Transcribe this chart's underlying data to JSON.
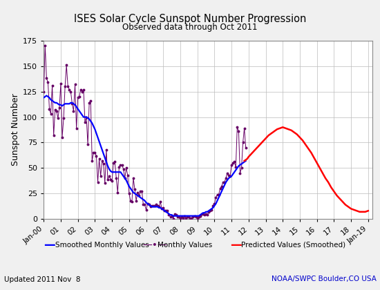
{
  "title": "ISES Solar Cycle Sunspot Number Progression",
  "subtitle": "Observed data through Oct 2011",
  "ylabel": "Sunspot Number",
  "footer_left": "Updated 2011 Nov  8",
  "footer_right": "NOAA/SWPC Boulder,CO USA",
  "ylim": [
    0,
    175
  ],
  "yticks": [
    0,
    25,
    50,
    75,
    100,
    125,
    150,
    175
  ],
  "x_start_year": 2000.0,
  "x_end_year": 2019.25,
  "x_tick_years": [
    2000,
    2001,
    2002,
    2003,
    2004,
    2005,
    2006,
    2007,
    2008,
    2009,
    2010,
    2011,
    2012,
    2013,
    2014,
    2015,
    2016,
    2017,
    2018,
    2019
  ],
  "x_tick_labels": [
    "Jan-00",
    "01",
    "02",
    "03",
    "04",
    "05",
    "06",
    "07",
    "08",
    "09",
    "10",
    "11",
    "12",
    "13",
    "14",
    "15",
    "16",
    "17",
    "18",
    "Jan-19"
  ],
  "bg_color": "#f0f0f0",
  "plot_bg_color": "#ffffff",
  "smoothed_color": "#0000ff",
  "monthly_color": "#660066",
  "predicted_color": "#ff0000",
  "smoothed_lw": 1.6,
  "predicted_lw": 1.8,
  "monthly_lw": 0.7,
  "monthly_marker": "o",
  "monthly_ms": 1.8,
  "smoothed_monthly": [
    [
      2000.0,
      119
    ],
    [
      2000.083,
      120
    ],
    [
      2000.167,
      121
    ],
    [
      2000.25,
      120
    ],
    [
      2000.333,
      119
    ],
    [
      2000.417,
      117
    ],
    [
      2000.5,
      116
    ],
    [
      2000.583,
      115
    ],
    [
      2000.667,
      114
    ],
    [
      2000.75,
      114
    ],
    [
      2000.833,
      113
    ],
    [
      2000.917,
      112
    ],
    [
      2001.0,
      112
    ],
    [
      2001.083,
      111
    ],
    [
      2001.167,
      112
    ],
    [
      2001.25,
      113
    ],
    [
      2001.333,
      113
    ],
    [
      2001.417,
      113
    ],
    [
      2001.5,
      113
    ],
    [
      2001.583,
      114
    ],
    [
      2001.667,
      114
    ],
    [
      2001.75,
      113
    ],
    [
      2001.833,
      112
    ],
    [
      2001.917,
      110
    ],
    [
      2002.0,
      108
    ],
    [
      2002.083,
      106
    ],
    [
      2002.167,
      104
    ],
    [
      2002.25,
      102
    ],
    [
      2002.333,
      100
    ],
    [
      2002.417,
      100
    ],
    [
      2002.5,
      100
    ],
    [
      2002.583,
      99
    ],
    [
      2002.667,
      98
    ],
    [
      2002.75,
      96
    ],
    [
      2002.833,
      94
    ],
    [
      2002.917,
      91
    ],
    [
      2003.0,
      88
    ],
    [
      2003.083,
      84
    ],
    [
      2003.167,
      80
    ],
    [
      2003.25,
      76
    ],
    [
      2003.333,
      72
    ],
    [
      2003.417,
      68
    ],
    [
      2003.5,
      64
    ],
    [
      2003.583,
      60
    ],
    [
      2003.667,
      56
    ],
    [
      2003.75,
      52
    ],
    [
      2003.833,
      49
    ],
    [
      2003.917,
      47
    ],
    [
      2004.0,
      46
    ],
    [
      2004.083,
      46
    ],
    [
      2004.167,
      46
    ],
    [
      2004.25,
      46
    ],
    [
      2004.333,
      46
    ],
    [
      2004.417,
      46
    ],
    [
      2004.5,
      46
    ],
    [
      2004.583,
      44
    ],
    [
      2004.667,
      42
    ],
    [
      2004.75,
      40
    ],
    [
      2004.833,
      38
    ],
    [
      2004.917,
      35
    ],
    [
      2005.0,
      32
    ],
    [
      2005.083,
      30
    ],
    [
      2005.167,
      28
    ],
    [
      2005.25,
      26
    ],
    [
      2005.333,
      25
    ],
    [
      2005.417,
      24
    ],
    [
      2005.5,
      23
    ],
    [
      2005.583,
      22
    ],
    [
      2005.667,
      21
    ],
    [
      2005.75,
      20
    ],
    [
      2005.833,
      19
    ],
    [
      2005.917,
      18
    ],
    [
      2006.0,
      16
    ],
    [
      2006.083,
      15
    ],
    [
      2006.167,
      14
    ],
    [
      2006.25,
      13
    ],
    [
      2006.333,
      12
    ],
    [
      2006.417,
      12
    ],
    [
      2006.5,
      12
    ],
    [
      2006.583,
      12
    ],
    [
      2006.667,
      12
    ],
    [
      2006.75,
      11
    ],
    [
      2006.833,
      11
    ],
    [
      2006.917,
      10
    ],
    [
      2007.0,
      9
    ],
    [
      2007.083,
      8
    ],
    [
      2007.167,
      7
    ],
    [
      2007.25,
      6
    ],
    [
      2007.333,
      5
    ],
    [
      2007.417,
      4
    ],
    [
      2007.5,
      4
    ],
    [
      2007.583,
      3
    ],
    [
      2007.667,
      3
    ],
    [
      2007.75,
      3
    ],
    [
      2007.833,
      3
    ],
    [
      2007.917,
      3
    ],
    [
      2008.0,
      3
    ],
    [
      2008.083,
      3
    ],
    [
      2008.167,
      3
    ],
    [
      2008.25,
      3
    ],
    [
      2008.333,
      3
    ],
    [
      2008.417,
      3
    ],
    [
      2008.5,
      3
    ],
    [
      2008.583,
      3
    ],
    [
      2008.667,
      3
    ],
    [
      2008.75,
      3
    ],
    [
      2008.833,
      3
    ],
    [
      2008.917,
      3
    ],
    [
      2009.0,
      3
    ],
    [
      2009.083,
      3
    ],
    [
      2009.167,
      4
    ],
    [
      2009.25,
      5
    ],
    [
      2009.333,
      6
    ],
    [
      2009.417,
      6
    ],
    [
      2009.5,
      7
    ],
    [
      2009.583,
      7
    ],
    [
      2009.667,
      8
    ],
    [
      2009.75,
      9
    ],
    [
      2009.833,
      10
    ],
    [
      2009.917,
      11
    ],
    [
      2010.0,
      13
    ],
    [
      2010.083,
      15
    ],
    [
      2010.167,
      18
    ],
    [
      2010.25,
      21
    ],
    [
      2010.333,
      24
    ],
    [
      2010.417,
      27
    ],
    [
      2010.5,
      30
    ],
    [
      2010.583,
      33
    ],
    [
      2010.667,
      36
    ],
    [
      2010.75,
      38
    ],
    [
      2010.833,
      40
    ],
    [
      2010.917,
      41
    ],
    [
      2011.0,
      42
    ],
    [
      2011.083,
      44
    ],
    [
      2011.167,
      46
    ],
    [
      2011.25,
      48
    ],
    [
      2011.333,
      50
    ],
    [
      2011.417,
      52
    ],
    [
      2011.5,
      53
    ],
    [
      2011.583,
      54
    ],
    [
      2011.667,
      55
    ],
    [
      2011.75,
      56
    ],
    [
      2011.833,
      57
    ]
  ],
  "monthly_values": [
    [
      2000.0,
      125
    ],
    [
      2000.083,
      170
    ],
    [
      2000.167,
      138
    ],
    [
      2000.25,
      134
    ],
    [
      2000.333,
      108
    ],
    [
      2000.417,
      103
    ],
    [
      2000.5,
      131
    ],
    [
      2000.583,
      82
    ],
    [
      2000.667,
      107
    ],
    [
      2000.75,
      106
    ],
    [
      2000.833,
      99
    ],
    [
      2000.917,
      109
    ],
    [
      2001.0,
      133
    ],
    [
      2001.083,
      80
    ],
    [
      2001.167,
      99
    ],
    [
      2001.25,
      130
    ],
    [
      2001.333,
      151
    ],
    [
      2001.417,
      130
    ],
    [
      2001.5,
      127
    ],
    [
      2001.583,
      125
    ],
    [
      2001.667,
      113
    ],
    [
      2001.75,
      106
    ],
    [
      2001.833,
      132
    ],
    [
      2001.917,
      89
    ],
    [
      2002.0,
      119
    ],
    [
      2002.083,
      120
    ],
    [
      2002.167,
      127
    ],
    [
      2002.25,
      125
    ],
    [
      2002.333,
      127
    ],
    [
      2002.417,
      95
    ],
    [
      2002.5,
      100
    ],
    [
      2002.583,
      73
    ],
    [
      2002.667,
      114
    ],
    [
      2002.75,
      116
    ],
    [
      2002.833,
      57
    ],
    [
      2002.917,
      65
    ],
    [
      2003.0,
      65
    ],
    [
      2003.083,
      62
    ],
    [
      2003.167,
      36
    ],
    [
      2003.25,
      59
    ],
    [
      2003.333,
      42
    ],
    [
      2003.417,
      57
    ],
    [
      2003.5,
      54
    ],
    [
      2003.583,
      35
    ],
    [
      2003.667,
      68
    ],
    [
      2003.75,
      39
    ],
    [
      2003.833,
      42
    ],
    [
      2003.917,
      39
    ],
    [
      2004.0,
      37
    ],
    [
      2004.083,
      55
    ],
    [
      2004.167,
      56
    ],
    [
      2004.25,
      40
    ],
    [
      2004.333,
      26
    ],
    [
      2004.417,
      51
    ],
    [
      2004.5,
      53
    ],
    [
      2004.583,
      53
    ],
    [
      2004.667,
      49
    ],
    [
      2004.75,
      40
    ],
    [
      2004.833,
      50
    ],
    [
      2004.917,
      43
    ],
    [
      2005.0,
      25
    ],
    [
      2005.083,
      18
    ],
    [
      2005.167,
      17
    ],
    [
      2005.25,
      40
    ],
    [
      2005.333,
      29
    ],
    [
      2005.417,
      18
    ],
    [
      2005.5,
      26
    ],
    [
      2005.583,
      23
    ],
    [
      2005.667,
      27
    ],
    [
      2005.75,
      27
    ],
    [
      2005.833,
      14
    ],
    [
      2005.917,
      14
    ],
    [
      2006.0,
      9
    ],
    [
      2006.083,
      15
    ],
    [
      2006.167,
      14
    ],
    [
      2006.25,
      12
    ],
    [
      2006.333,
      13
    ],
    [
      2006.417,
      13
    ],
    [
      2006.5,
      13
    ],
    [
      2006.583,
      14
    ],
    [
      2006.667,
      13
    ],
    [
      2006.75,
      12
    ],
    [
      2006.833,
      17
    ],
    [
      2006.917,
      10
    ],
    [
      2007.0,
      11
    ],
    [
      2007.083,
      8
    ],
    [
      2007.167,
      8
    ],
    [
      2007.25,
      8
    ],
    [
      2007.333,
      4
    ],
    [
      2007.417,
      2
    ],
    [
      2007.5,
      3
    ],
    [
      2007.583,
      0
    ],
    [
      2007.667,
      5
    ],
    [
      2007.75,
      4
    ],
    [
      2007.833,
      2
    ],
    [
      2007.917,
      2
    ],
    [
      2008.0,
      1
    ],
    [
      2008.083,
      2
    ],
    [
      2008.167,
      1
    ],
    [
      2008.25,
      3
    ],
    [
      2008.333,
      1
    ],
    [
      2008.417,
      2
    ],
    [
      2008.5,
      2
    ],
    [
      2008.583,
      1
    ],
    [
      2008.667,
      1
    ],
    [
      2008.75,
      2
    ],
    [
      2008.833,
      3
    ],
    [
      2008.917,
      2
    ],
    [
      2009.0,
      1
    ],
    [
      2009.083,
      2
    ],
    [
      2009.167,
      3
    ],
    [
      2009.25,
      5
    ],
    [
      2009.333,
      5
    ],
    [
      2009.417,
      4
    ],
    [
      2009.5,
      5
    ],
    [
      2009.583,
      4
    ],
    [
      2009.667,
      7
    ],
    [
      2009.75,
      8
    ],
    [
      2009.833,
      9
    ],
    [
      2009.917,
      13
    ],
    [
      2010.0,
      15
    ],
    [
      2010.083,
      21
    ],
    [
      2010.167,
      24
    ],
    [
      2010.25,
      24
    ],
    [
      2010.333,
      30
    ],
    [
      2010.417,
      32
    ],
    [
      2010.5,
      36
    ],
    [
      2010.583,
      36
    ],
    [
      2010.667,
      40
    ],
    [
      2010.75,
      45
    ],
    [
      2010.833,
      43
    ],
    [
      2010.917,
      42
    ],
    [
      2011.0,
      53
    ],
    [
      2011.083,
      55
    ],
    [
      2011.167,
      56
    ],
    [
      2011.25,
      51
    ],
    [
      2011.333,
      90
    ],
    [
      2011.417,
      86
    ],
    [
      2011.5,
      45
    ],
    [
      2011.583,
      50
    ],
    [
      2011.667,
      75
    ],
    [
      2011.75,
      89
    ],
    [
      2011.833,
      70
    ]
  ],
  "predicted_smoothed": [
    [
      2011.75,
      57
    ],
    [
      2011.917,
      59
    ],
    [
      2012.0,
      61
    ],
    [
      2012.167,
      64
    ],
    [
      2012.333,
      67
    ],
    [
      2012.5,
      70
    ],
    [
      2012.667,
      73
    ],
    [
      2012.833,
      76
    ],
    [
      2013.0,
      79
    ],
    [
      2013.167,
      82
    ],
    [
      2013.333,
      84
    ],
    [
      2013.5,
      86
    ],
    [
      2013.667,
      88
    ],
    [
      2013.833,
      89
    ],
    [
      2014.0,
      90
    ],
    [
      2014.167,
      89
    ],
    [
      2014.333,
      88
    ],
    [
      2014.5,
      87
    ],
    [
      2014.667,
      85
    ],
    [
      2014.833,
      83
    ],
    [
      2015.0,
      80
    ],
    [
      2015.167,
      77
    ],
    [
      2015.333,
      73
    ],
    [
      2015.5,
      69
    ],
    [
      2015.667,
      65
    ],
    [
      2015.833,
      60
    ],
    [
      2016.0,
      55
    ],
    [
      2016.167,
      50
    ],
    [
      2016.333,
      45
    ],
    [
      2016.5,
      40
    ],
    [
      2016.667,
      36
    ],
    [
      2016.833,
      31
    ],
    [
      2017.0,
      27
    ],
    [
      2017.167,
      23
    ],
    [
      2017.333,
      20
    ],
    [
      2017.5,
      17
    ],
    [
      2017.667,
      14
    ],
    [
      2017.833,
      12
    ],
    [
      2018.0,
      10
    ],
    [
      2018.167,
      9
    ],
    [
      2018.333,
      8
    ],
    [
      2018.5,
      7
    ],
    [
      2018.667,
      7
    ],
    [
      2018.833,
      7
    ],
    [
      2019.0,
      8
    ]
  ]
}
